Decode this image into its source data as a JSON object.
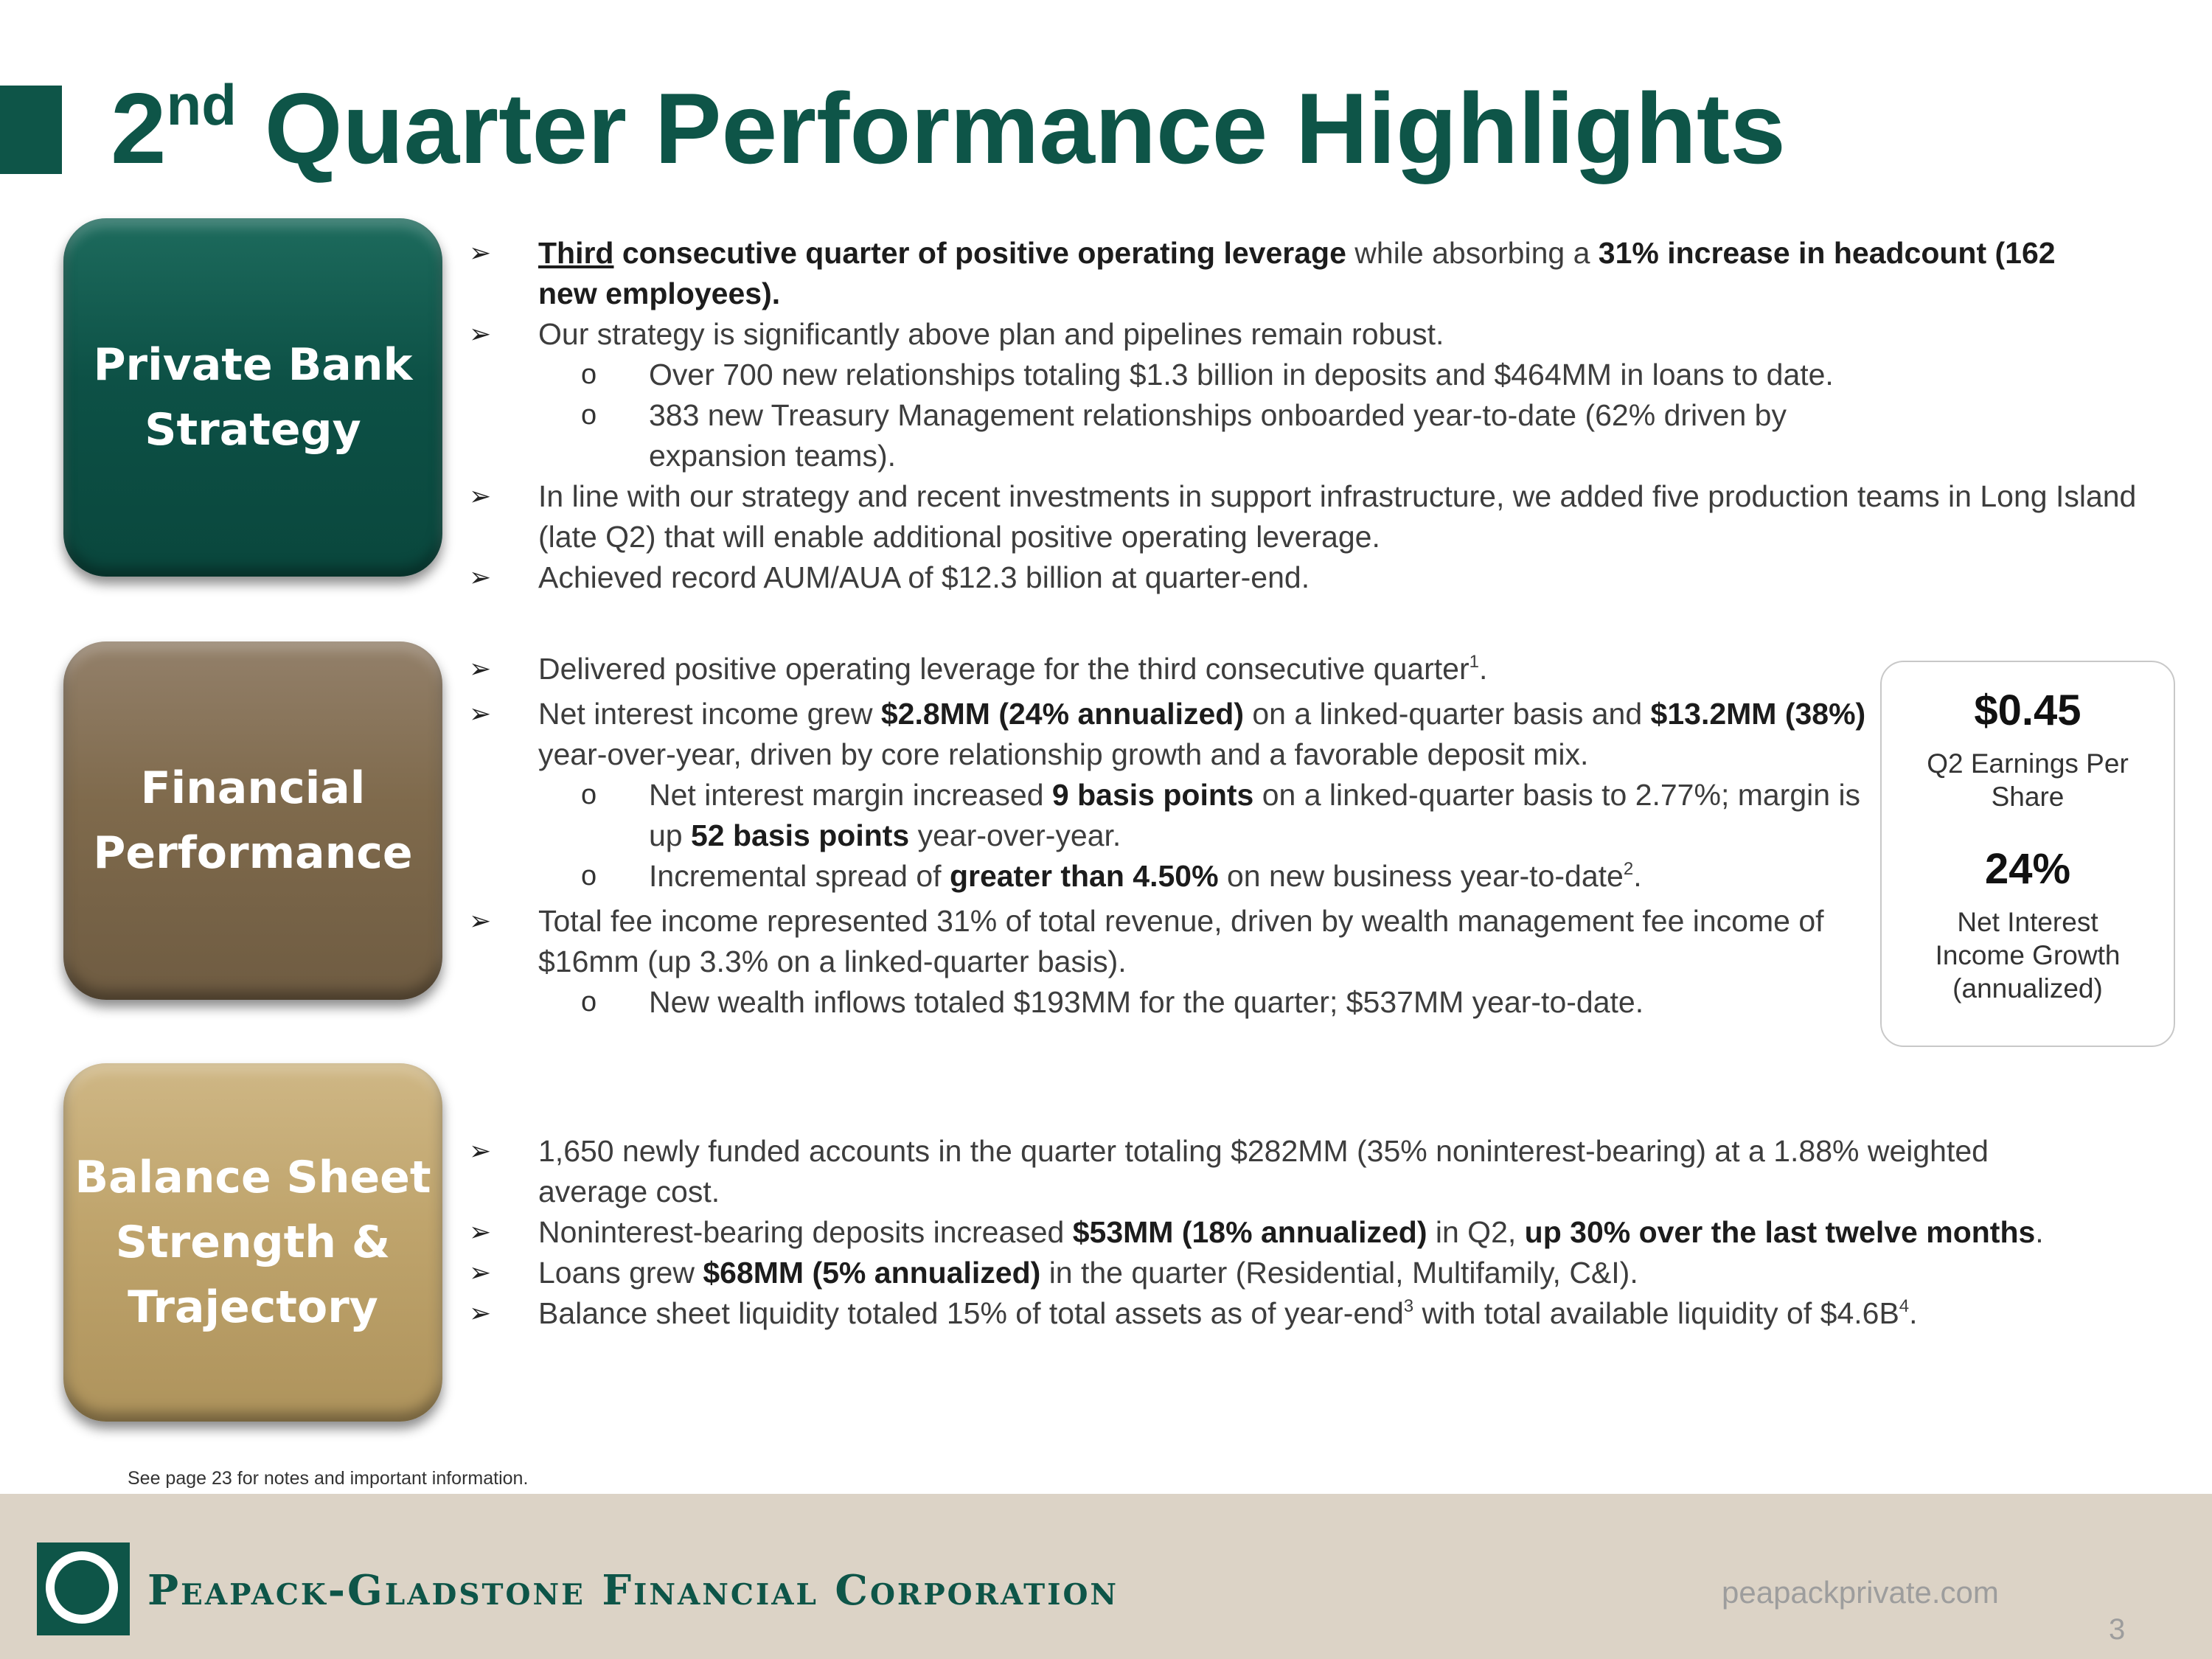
{
  "header": {
    "title_number": "2",
    "title_suffix": "nd",
    "title_rest": " Quarter Performance Highlights"
  },
  "sections": {
    "private_bank": {
      "label_line1": "Private Bank",
      "label_line2": "Strategy",
      "b1": {
        "underlined": "Third",
        "bold1": " consecutive quarter of positive operating leverage",
        "text1": " while absorbing a ",
        "bold2": "31% increase in headcount (162 new employees)."
      },
      "b2": "Our strategy is significantly above plan and pipelines remain robust.",
      "b2_sub1": "Over 700 new relationships totaling $1.3 billion in deposits and $464MM in loans to date.",
      "b2_sub2": "383 new Treasury Management relationships onboarded year-to-date (62% driven by expansion teams).",
      "b3": "In line with our strategy and recent investments in support infrastructure, we added five production teams in Long Island (late Q2) that will enable additional positive operating leverage.",
      "b4": "Achieved record AUM/AUA of $12.3 billion at quarter-end."
    },
    "financial": {
      "label_line1": "Financial",
      "label_line2": "Performance",
      "b1_text": "Delivered positive operating leverage for the third consecutive quarter",
      "b1_sup": "1",
      "b1_end": ".",
      "b2": {
        "text1": "Net interest income grew ",
        "bold1": "$2.8MM (24% annualized)",
        "text2": " on a linked-quarter basis and ",
        "bold2": "$13.2MM (38%)",
        "text3": " year-over-year, driven by core relationship growth and a favorable deposit mix."
      },
      "b2_sub1": {
        "text1": "Net interest margin increased ",
        "bold1": "9 basis points",
        "text2": " on a linked-quarter basis to 2.77%; margin is up ",
        "bold2": "52 basis points",
        "text3": " year-over-year."
      },
      "b2_sub2": {
        "text1": "Incremental spread of ",
        "bold1": "greater than 4.50%",
        "text2": " on new business year-to-date",
        "sup": "2",
        "end": "."
      },
      "b3": "Total fee income represented 31% of total revenue, driven by wealth management fee income of $16mm (up 3.3% on a linked-quarter basis).",
      "b3_sub1": "New wealth inflows totaled $193MM for the quarter; $537MM year-to-date."
    },
    "balance": {
      "label_line1": "Balance Sheet",
      "label_line2": "Strength &",
      "label_line3": "Trajectory",
      "b1": "1,650 newly funded accounts in the quarter totaling $282MM (35% noninterest-bearing) at a 1.88% weighted average cost.",
      "b2": {
        "text1": "Noninterest-bearing deposits increased ",
        "bold1": "$53MM (18% annualized)",
        "text2": " in Q2, ",
        "bold2": "up 30% over the last twelve months",
        "end": "."
      },
      "b3": {
        "text1": "Loans grew ",
        "bold1": "$68MM (5% annualized)",
        "text2": " in the quarter (Residential, Multifamily, C&I)."
      },
      "b4": {
        "text1": "Balance sheet liquidity totaled 15% of total assets as of year-end",
        "sup1": "3",
        "text2": " with total available liquidity of $4.6B",
        "sup2": "4",
        "end": "."
      }
    }
  },
  "stats": {
    "eps_value": "$0.45",
    "eps_label_line1": "Q2 Earnings Per",
    "eps_label_line2": "Share",
    "nii_value": "24%",
    "nii_label_line1": "Net Interest",
    "nii_label_line2": "Income Growth",
    "nii_label_line3": "(annualized)"
  },
  "footnote": "See page 23 for notes and important information.",
  "footer": {
    "company": "Peapack-Gladstone Financial Corporation",
    "website": "peapackprivate.com",
    "page_number": "3"
  },
  "colors": {
    "brand_green": "#0e5548",
    "financial_brown": "#7f6a4c",
    "balance_gold": "#bfa46c",
    "footer_beige": "#dcd3c6"
  }
}
